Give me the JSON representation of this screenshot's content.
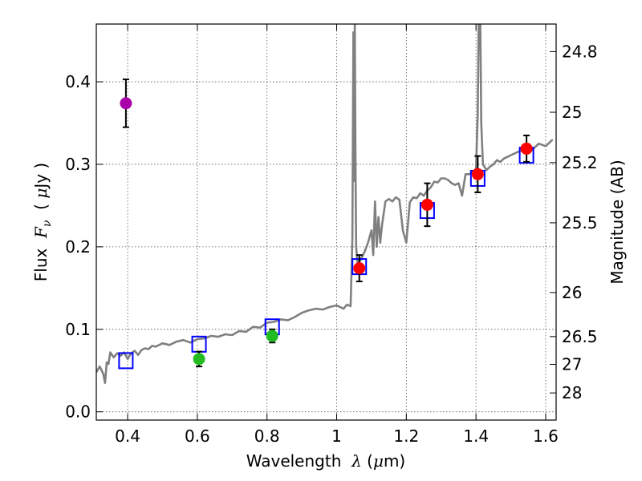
{
  "chart_data": {
    "type": "scatter",
    "xlabel": {
      "prefix": "Wavelength  ",
      "symbol": "λ",
      "unit_open": " (",
      "unit_symbol": "μ",
      "unit_close": "m)"
    },
    "ylabel": {
      "prefix": "Flux  ",
      "symbol": "F",
      "subscript": "ν",
      "unit_open": "  ( ",
      "unit_symbol": "μ",
      "unit_close": "Jy )"
    },
    "y2label": "Magnitude (AB)",
    "xlim": [
      0.31,
      1.63
    ],
    "ylim": [
      -0.01,
      0.47
    ],
    "grid": true,
    "x_ticks": [
      {
        "value": 0.4,
        "label": "0.4"
      },
      {
        "value": 0.6,
        "label": "0.6"
      },
      {
        "value": 0.8,
        "label": "0.8"
      },
      {
        "value": 1.0,
        "label": "1"
      },
      {
        "value": 1.2,
        "label": "1.2"
      },
      {
        "value": 1.4,
        "label": "1.4"
      },
      {
        "value": 1.6,
        "label": "1.6"
      }
    ],
    "y_ticks": [
      {
        "value": 0.0,
        "label": "0.0"
      },
      {
        "value": 0.1,
        "label": "0.1"
      },
      {
        "value": 0.2,
        "label": "0.2"
      },
      {
        "value": 0.3,
        "label": "0.3"
      },
      {
        "value": 0.4,
        "label": "0.4"
      }
    ],
    "y2_ticks": [
      {
        "value": 24.8,
        "label": "24.8"
      },
      {
        "value": 25.0,
        "label": "25"
      },
      {
        "value": 25.2,
        "label": "25.2"
      },
      {
        "value": 25.5,
        "label": "25.5"
      },
      {
        "value": 26.0,
        "label": "26"
      },
      {
        "value": 26.5,
        "label": "26.5"
      },
      {
        "value": 27.0,
        "label": "27"
      },
      {
        "value": 28.0,
        "label": "28"
      }
    ],
    "observed_points": [
      {
        "x": 0.395,
        "y": 0.374,
        "err": 0.029,
        "color": "#aa00aa"
      },
      {
        "x": 0.605,
        "y": 0.064,
        "err": 0.009,
        "color": "#22bb22"
      },
      {
        "x": 0.815,
        "y": 0.092,
        "err": 0.008,
        "color": "#22bb22"
      },
      {
        "x": 1.065,
        "y": 0.174,
        "err": 0.016,
        "color": "#ff0000"
      },
      {
        "x": 1.26,
        "y": 0.251,
        "err": 0.026,
        "color": "#ff0000"
      },
      {
        "x": 1.405,
        "y": 0.288,
        "err": 0.022,
        "color": "#ff0000"
      },
      {
        "x": 1.545,
        "y": 0.319,
        "err": 0.016,
        "color": "#ff0000"
      }
    ],
    "model_points": [
      {
        "x": 0.395,
        "y": 0.062
      },
      {
        "x": 0.605,
        "y": 0.082
      },
      {
        "x": 0.815,
        "y": 0.103
      },
      {
        "x": 1.065,
        "y": 0.176
      },
      {
        "x": 1.26,
        "y": 0.244
      },
      {
        "x": 1.405,
        "y": 0.283
      },
      {
        "x": 1.545,
        "y": 0.311
      }
    ],
    "spectrum": {
      "color": "#808080",
      "x": [
        0.31,
        0.32,
        0.33,
        0.335,
        0.34,
        0.345,
        0.35,
        0.36,
        0.37,
        0.38,
        0.39,
        0.4,
        0.41,
        0.42,
        0.43,
        0.44,
        0.45,
        0.46,
        0.47,
        0.48,
        0.5,
        0.52,
        0.54,
        0.56,
        0.58,
        0.6,
        0.62,
        0.64,
        0.66,
        0.68,
        0.7,
        0.72,
        0.74,
        0.76,
        0.78,
        0.8,
        0.82,
        0.84,
        0.86,
        0.88,
        0.9,
        0.92,
        0.94,
        0.96,
        0.98,
        1.0,
        1.02,
        1.03,
        1.04,
        1.045,
        1.048,
        1.05,
        1.052,
        1.054,
        1.056,
        1.06,
        1.07,
        1.08,
        1.09,
        1.1,
        1.105,
        1.11,
        1.115,
        1.12,
        1.125,
        1.13,
        1.14,
        1.15,
        1.16,
        1.17,
        1.18,
        1.19,
        1.2,
        1.21,
        1.22,
        1.23,
        1.24,
        1.25,
        1.26,
        1.27,
        1.28,
        1.29,
        1.3,
        1.31,
        1.32,
        1.33,
        1.34,
        1.35,
        1.36,
        1.37,
        1.38,
        1.39,
        1.395,
        1.4,
        1.405,
        1.408,
        1.41,
        1.412,
        1.415,
        1.42,
        1.43,
        1.44,
        1.45,
        1.46,
        1.47,
        1.48,
        1.49,
        1.5,
        1.52,
        1.54,
        1.56,
        1.58,
        1.6,
        1.62
      ],
      "y": [
        0.048,
        0.055,
        0.046,
        0.035,
        0.06,
        0.058,
        0.072,
        0.066,
        0.071,
        0.068,
        0.072,
        0.064,
        0.071,
        0.074,
        0.069,
        0.075,
        0.077,
        0.076,
        0.08,
        0.079,
        0.083,
        0.081,
        0.085,
        0.087,
        0.084,
        0.088,
        0.089,
        0.092,
        0.091,
        0.094,
        0.093,
        0.098,
        0.097,
        0.103,
        0.102,
        0.108,
        0.109,
        0.112,
        0.111,
        0.115,
        0.12,
        0.123,
        0.125,
        0.124,
        0.127,
        0.129,
        0.125,
        0.13,
        0.128,
        0.21,
        0.46,
        0.28,
        0.47,
        0.3,
        0.2,
        0.178,
        0.185,
        0.194,
        0.205,
        0.22,
        0.19,
        0.255,
        0.2,
        0.236,
        0.205,
        0.226,
        0.255,
        0.258,
        0.255,
        0.26,
        0.257,
        0.22,
        0.205,
        0.254,
        0.26,
        0.259,
        0.265,
        0.262,
        0.268,
        0.272,
        0.279,
        0.278,
        0.283,
        0.283,
        0.281,
        0.277,
        0.275,
        0.277,
        0.262,
        0.288,
        0.288,
        0.29,
        0.292,
        0.295,
        0.36,
        0.48,
        0.48,
        0.48,
        0.35,
        0.3,
        0.293,
        0.297,
        0.3,
        0.305,
        0.303,
        0.307,
        0.309,
        0.311,
        0.315,
        0.318,
        0.317,
        0.325,
        0.322,
        0.33
      ]
    }
  }
}
